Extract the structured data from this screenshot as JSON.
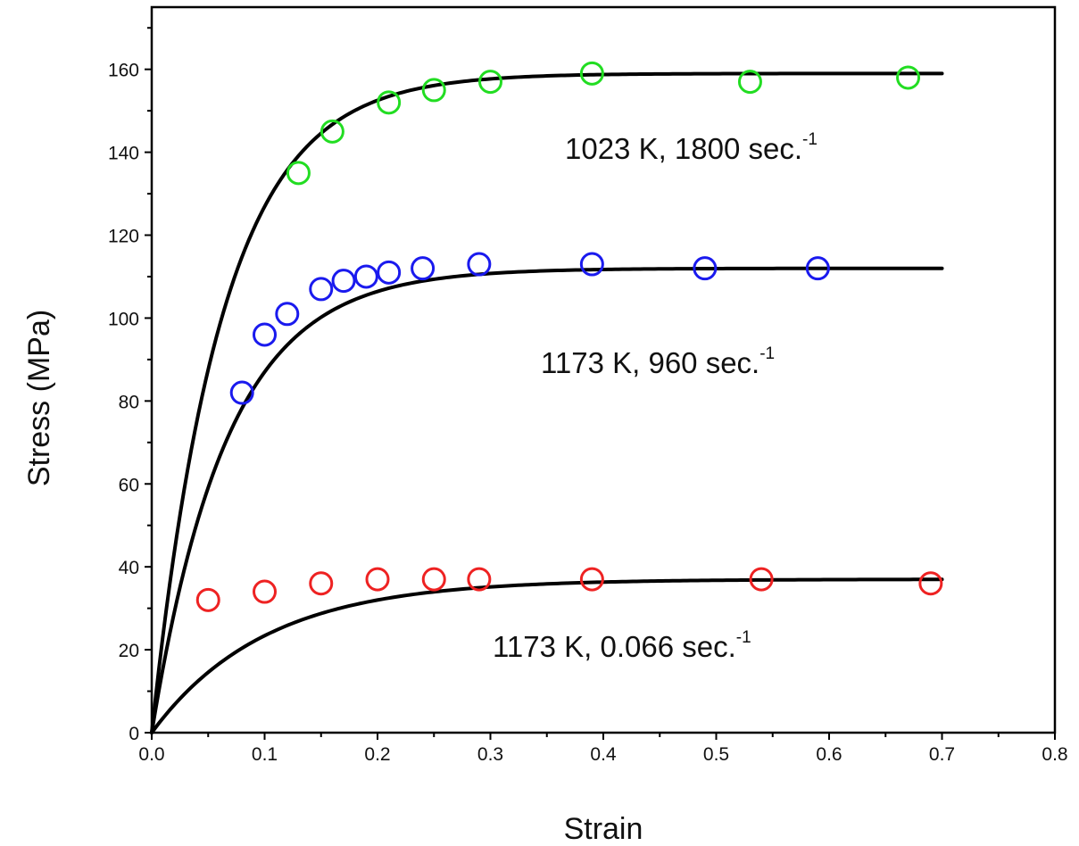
{
  "chart_data": {
    "type": "scatter",
    "title": "",
    "xlabel": "Strain",
    "ylabel": "Stress (MPa)",
    "xlim": [
      0,
      0.8
    ],
    "ylim": [
      0,
      175
    ],
    "x_ticks": [
      0,
      0.1,
      0.2,
      0.3,
      0.4,
      0.5,
      0.6,
      0.7,
      0.8
    ],
    "x_tick_labels": [
      "0.0",
      "0.1",
      "0.2",
      "0.3",
      "0.4",
      "0.5",
      "0.6",
      "0.7",
      "0.8"
    ],
    "y_ticks": [
      0,
      20,
      40,
      60,
      80,
      100,
      120,
      140,
      160
    ],
    "y_tick_labels": [
      "0",
      "20",
      "40",
      "60",
      "80",
      "100",
      "120",
      "140",
      "160"
    ],
    "grid": false,
    "marker": "open-circle",
    "series": [
      {
        "color": "#22dd22",
        "annotation": "1023 K, 1800 sec.",
        "annotation_sup": "-1",
        "x": [
          0.13,
          0.16,
          0.21,
          0.25,
          0.3,
          0.39,
          0.53,
          0.67
        ],
        "y": [
          135,
          145,
          152,
          155,
          157,
          159,
          157,
          158
        ],
        "fit": {
          "x_end": 0.7,
          "plateau": 159,
          "k": 16,
          "start": 0
        }
      },
      {
        "color": "#1a1aee",
        "annotation": "1173 K,  960 sec.",
        "annotation_sup": "-1",
        "x": [
          0.08,
          0.1,
          0.12,
          0.15,
          0.17,
          0.19,
          0.21,
          0.24,
          0.29,
          0.39,
          0.49,
          0.59
        ],
        "y": [
          82,
          96,
          101,
          107,
          109,
          110,
          111,
          112,
          113,
          113,
          112,
          112
        ],
        "fit": {
          "x_end": 0.7,
          "plateau": 112,
          "k": 15,
          "start": 0
        }
      },
      {
        "color": "#ee2222",
        "annotation": "1173 K,  0.066 sec.",
        "annotation_sup": "-1",
        "x": [
          0.05,
          0.1,
          0.15,
          0.2,
          0.25,
          0.29,
          0.39,
          0.54,
          0.69
        ],
        "y": [
          32,
          34,
          36,
          37,
          37,
          37,
          37,
          37,
          36
        ],
        "fit": {
          "x_end": 0.7,
          "plateau": 37,
          "k": 10,
          "start": 0
        }
      }
    ]
  }
}
